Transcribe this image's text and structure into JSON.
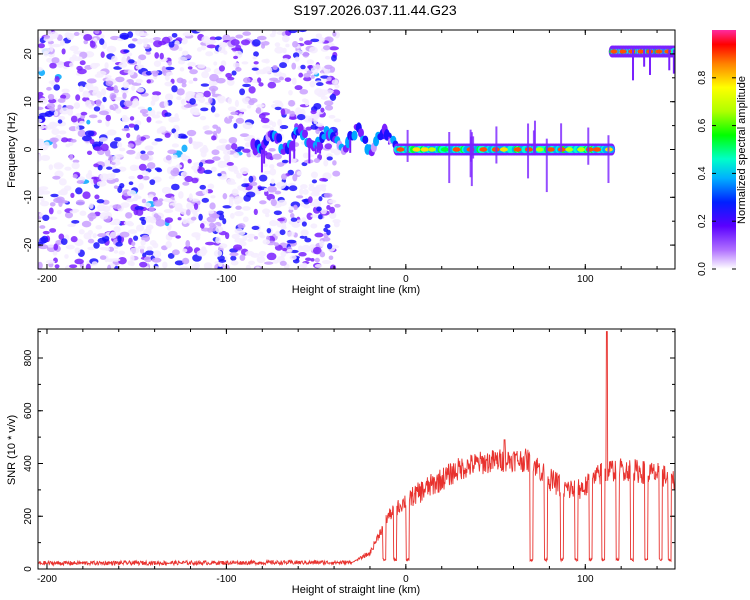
{
  "title": "S197.2026.037.11.44.G23",
  "chart_data": [
    {
      "type": "heatmap",
      "title": "",
      "xlabel": "Height of straight line (km)",
      "ylabel": "Frequency (Hz)",
      "xlim": [
        -205,
        150
      ],
      "ylim": [
        -25,
        25
      ],
      "xticks": [
        -200,
        -100,
        0,
        100
      ],
      "xtick_labels": [
        "-200",
        "-100",
        "0",
        "100"
      ],
      "yticks": [
        -20,
        -10,
        0,
        10,
        20
      ],
      "ytick_labels": [
        "-20",
        "-10",
        "0",
        "10",
        "20"
      ],
      "colorbar": {
        "label": "Normalized spectral amplitude",
        "range": [
          0,
          1
        ],
        "ticks": [
          0.0,
          0.2,
          0.4,
          0.6,
          0.8
        ],
        "tick_labels": [
          "0.0",
          "0.2",
          "0.4",
          "0.6",
          "0.8"
        ],
        "colormap": "rainbow"
      },
      "regions": [
        {
          "name": "noise",
          "x_range": [
            -205,
            -38
          ],
          "freq_range": [
            -25,
            25
          ],
          "amplitude": 0.2
        },
        {
          "name": "carrier-onset",
          "x_range": [
            -85,
            -5
          ],
          "frequency": 2,
          "amplitude": 0.3
        },
        {
          "name": "carrier",
          "x_range": [
            -5,
            115
          ],
          "frequency": 0,
          "amplitude": 0.8
        },
        {
          "name": "aliased-carrier",
          "x_range": [
            115,
            150
          ],
          "frequency": 20.5,
          "amplitude": 0.9
        }
      ]
    },
    {
      "type": "line",
      "title": "",
      "xlabel": "Height of straight line (km)",
      "ylabel": "SNR (10 * v/v)",
      "xlim": [
        -205,
        150
      ],
      "ylim": [
        0,
        910
      ],
      "xticks": [
        -200,
        -100,
        0,
        100
      ],
      "xtick_labels": [
        "-200",
        "-100",
        "0",
        "100"
      ],
      "yticks": [
        0,
        200,
        400,
        600,
        800
      ],
      "ytick_labels": [
        "0",
        "200",
        "400",
        "600",
        "800"
      ],
      "series": [
        {
          "name": "SNR",
          "color": "#e8322e",
          "envelope_x": [
            -205,
            -30,
            -20,
            -10,
            0,
            10,
            20,
            30,
            40,
            50,
            60,
            70,
            80,
            90,
            100,
            110,
            120,
            130,
            140,
            150
          ],
          "envelope_y": [
            22,
            25,
            60,
            200,
            260,
            300,
            340,
            380,
            400,
            410,
            415,
            410,
            340,
            300,
            310,
            370,
            380,
            370,
            360,
            340
          ],
          "dropouts_x": [
            -12,
            -6,
            1,
            70,
            78,
            87,
            95,
            103,
            110,
            118,
            126,
            134,
            142,
            147
          ],
          "dropout_level": 30,
          "peaks": [
            {
              "x": 112,
              "y": 900
            },
            {
              "x": 55,
              "y": 490
            }
          ],
          "noise_amplitude": 45
        }
      ]
    }
  ]
}
